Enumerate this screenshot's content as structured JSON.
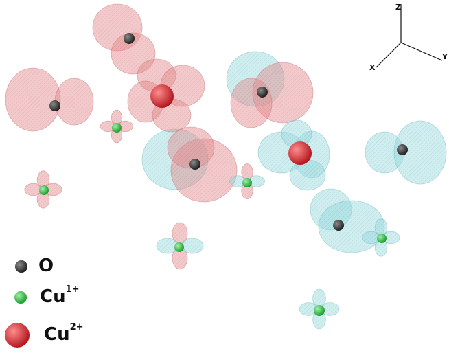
{
  "axes": {
    "z_label": "Z",
    "x_label": "X",
    "y_label": "Y"
  },
  "legend": {
    "items": [
      {
        "symbol": "O",
        "base": "O",
        "sup": "",
        "color": "#2b2b2b"
      },
      {
        "symbol": "Cu1+",
        "base": "Cu",
        "sup": "1+",
        "color": "#22c43a"
      },
      {
        "symbol": "Cu2+",
        "base": "Cu",
        "sup": "2+",
        "color": "#d81f26"
      }
    ]
  },
  "colors": {
    "positive_lobe": "#e3898c",
    "negative_lobe": "#96d9dd",
    "oxygen": "#2b2b2b",
    "cu1": "#22c43a",
    "cu2": "#d81f26"
  }
}
